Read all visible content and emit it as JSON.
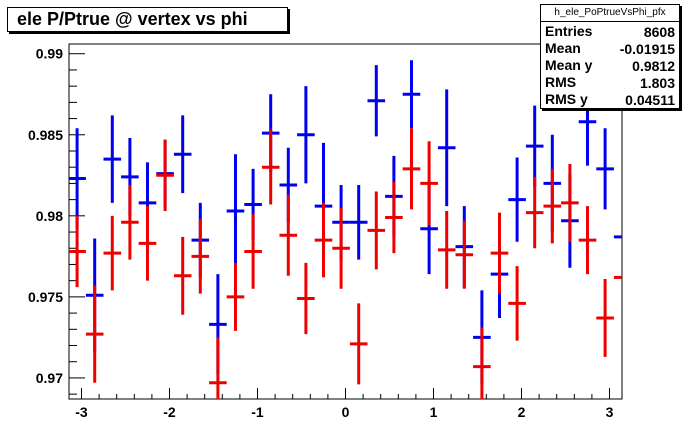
{
  "title": "ele P/Ptrue @ vertex vs phi",
  "stats": {
    "name": "h_ele_PoPtrueVsPhi_pfx",
    "rows": [
      {
        "key": "Entries",
        "value": "8608"
      },
      {
        "key": "Mean",
        "value": "-0.01915"
      },
      {
        "key": "Mean y",
        "value": "0.9812"
      },
      {
        "key": "RMS",
        "value": "1.803"
      },
      {
        "key": "RMS y",
        "value": "0.04511"
      }
    ]
  },
  "colors": {
    "series_blue": "#0000ee",
    "series_red": "#ee0000",
    "axis": "#000000"
  },
  "chart_data": {
    "type": "scatter",
    "title": "ele P/Ptrue @ vertex vs phi",
    "xlim": [
      -3.142,
      3.142
    ],
    "ylim": [
      0.9687,
      0.9906
    ],
    "x_ticks": [
      -3,
      -2,
      -1,
      0,
      1,
      2,
      3
    ],
    "x_tick_labels": [
      "-3",
      "-2",
      "-1",
      "0",
      "1",
      "2",
      "3"
    ],
    "y_ticks": [
      0.97,
      0.975,
      0.98,
      0.985,
      0.99
    ],
    "y_tick_labels": [
      "0.97",
      "0.975",
      "0.98",
      "0.985",
      "0.99"
    ],
    "grid": false,
    "series": [
      {
        "color": "#0000ee",
        "points": [
          {
            "x": -3.05,
            "y": 0.9823,
            "err": 0.0031
          },
          {
            "x": -2.85,
            "y": 0.9751,
            "err": 0.0035
          },
          {
            "x": -2.65,
            "y": 0.9835,
            "err": 0.0027
          },
          {
            "x": -2.45,
            "y": 0.9824,
            "err": 0.0024
          },
          {
            "x": -2.25,
            "y": 0.9808,
            "err": 0.0025
          },
          {
            "x": -2.05,
            "y": 0.9826,
            "err": 0.0021
          },
          {
            "x": -1.85,
            "y": 0.9838,
            "err": 0.0024
          },
          {
            "x": -1.65,
            "y": 0.9785,
            "err": 0.0023
          },
          {
            "x": -1.45,
            "y": 0.9733,
            "err": 0.0031
          },
          {
            "x": -1.25,
            "y": 0.9803,
            "err": 0.0035
          },
          {
            "x": -1.05,
            "y": 0.9807,
            "err": 0.0022
          },
          {
            "x": -0.85,
            "y": 0.9851,
            "err": 0.0024
          },
          {
            "x": -0.65,
            "y": 0.9819,
            "err": 0.0023
          },
          {
            "x": -0.45,
            "y": 0.985,
            "err": 0.003
          },
          {
            "x": -0.25,
            "y": 0.9806,
            "err": 0.0039
          },
          {
            "x": -0.05,
            "y": 0.9796,
            "err": 0.0023
          },
          {
            "x": 0.15,
            "y": 0.9796,
            "err": 0.0023
          },
          {
            "x": 0.35,
            "y": 0.9871,
            "err": 0.0022
          },
          {
            "x": 0.55,
            "y": 0.9812,
            "err": 0.0025
          },
          {
            "x": 0.75,
            "y": 0.9875,
            "err": 0.0021
          },
          {
            "x": 0.95,
            "y": 0.9792,
            "err": 0.0028
          },
          {
            "x": 1.15,
            "y": 0.9842,
            "err": 0.0036
          },
          {
            "x": 1.35,
            "y": 0.9781,
            "err": 0.0025
          },
          {
            "x": 1.55,
            "y": 0.9725,
            "err": 0.0029
          },
          {
            "x": 1.75,
            "y": 0.9764,
            "err": 0.0027
          },
          {
            "x": 1.95,
            "y": 0.981,
            "err": 0.0026
          },
          {
            "x": 2.15,
            "y": 0.9843,
            "err": 0.0025
          },
          {
            "x": 2.35,
            "y": 0.982,
            "err": 0.003
          },
          {
            "x": 2.55,
            "y": 0.9797,
            "err": 0.0029
          },
          {
            "x": 2.75,
            "y": 0.9858,
            "err": 0.0027
          },
          {
            "x": 2.95,
            "y": 0.9829,
            "err": 0.0025
          },
          {
            "x": 3.15,
            "y": 0.9787,
            "err": 0.0034
          }
        ]
      },
      {
        "color": "#ee0000",
        "points": [
          {
            "x": -3.05,
            "y": 0.9778,
            "err": 0.0022
          },
          {
            "x": -2.85,
            "y": 0.9727,
            "err": 0.003
          },
          {
            "x": -2.65,
            "y": 0.9777,
            "err": 0.0023
          },
          {
            "x": -2.45,
            "y": 0.9796,
            "err": 0.0023
          },
          {
            "x": -2.25,
            "y": 0.9783,
            "err": 0.0023
          },
          {
            "x": -2.05,
            "y": 0.9825,
            "err": 0.0022
          },
          {
            "x": -1.85,
            "y": 0.9763,
            "err": 0.0024
          },
          {
            "x": -1.65,
            "y": 0.9775,
            "err": 0.0023
          },
          {
            "x": -1.45,
            "y": 0.9697,
            "err": 0.0028
          },
          {
            "x": -1.25,
            "y": 0.975,
            "err": 0.0021
          },
          {
            "x": -1.05,
            "y": 0.9778,
            "err": 0.0023
          },
          {
            "x": -0.85,
            "y": 0.983,
            "err": 0.0023
          },
          {
            "x": -0.65,
            "y": 0.9788,
            "err": 0.0025
          },
          {
            "x": -0.45,
            "y": 0.9749,
            "err": 0.0022
          },
          {
            "x": -0.25,
            "y": 0.9785,
            "err": 0.0023
          },
          {
            "x": -0.05,
            "y": 0.978,
            "err": 0.0025
          },
          {
            "x": 0.15,
            "y": 0.9721,
            "err": 0.0025
          },
          {
            "x": 0.35,
            "y": 0.9791,
            "err": 0.0024
          },
          {
            "x": 0.55,
            "y": 0.9799,
            "err": 0.0022
          },
          {
            "x": 0.75,
            "y": 0.9829,
            "err": 0.0025
          },
          {
            "x": 0.95,
            "y": 0.982,
            "err": 0.0026
          },
          {
            "x": 1.15,
            "y": 0.9779,
            "err": 0.0024
          },
          {
            "x": 1.35,
            "y": 0.9776,
            "err": 0.0021
          },
          {
            "x": 1.55,
            "y": 0.9707,
            "err": 0.0024
          },
          {
            "x": 1.75,
            "y": 0.9777,
            "err": 0.0025
          },
          {
            "x": 1.95,
            "y": 0.9746,
            "err": 0.0023
          },
          {
            "x": 2.15,
            "y": 0.9802,
            "err": 0.0022
          },
          {
            "x": 2.35,
            "y": 0.9806,
            "err": 0.0023
          },
          {
            "x": 2.55,
            "y": 0.9808,
            "err": 0.0024
          },
          {
            "x": 2.75,
            "y": 0.9785,
            "err": 0.0021
          },
          {
            "x": 2.95,
            "y": 0.9737,
            "err": 0.0024
          },
          {
            "x": 3.15,
            "y": 0.9762,
            "err": 0.0024
          }
        ]
      }
    ]
  }
}
